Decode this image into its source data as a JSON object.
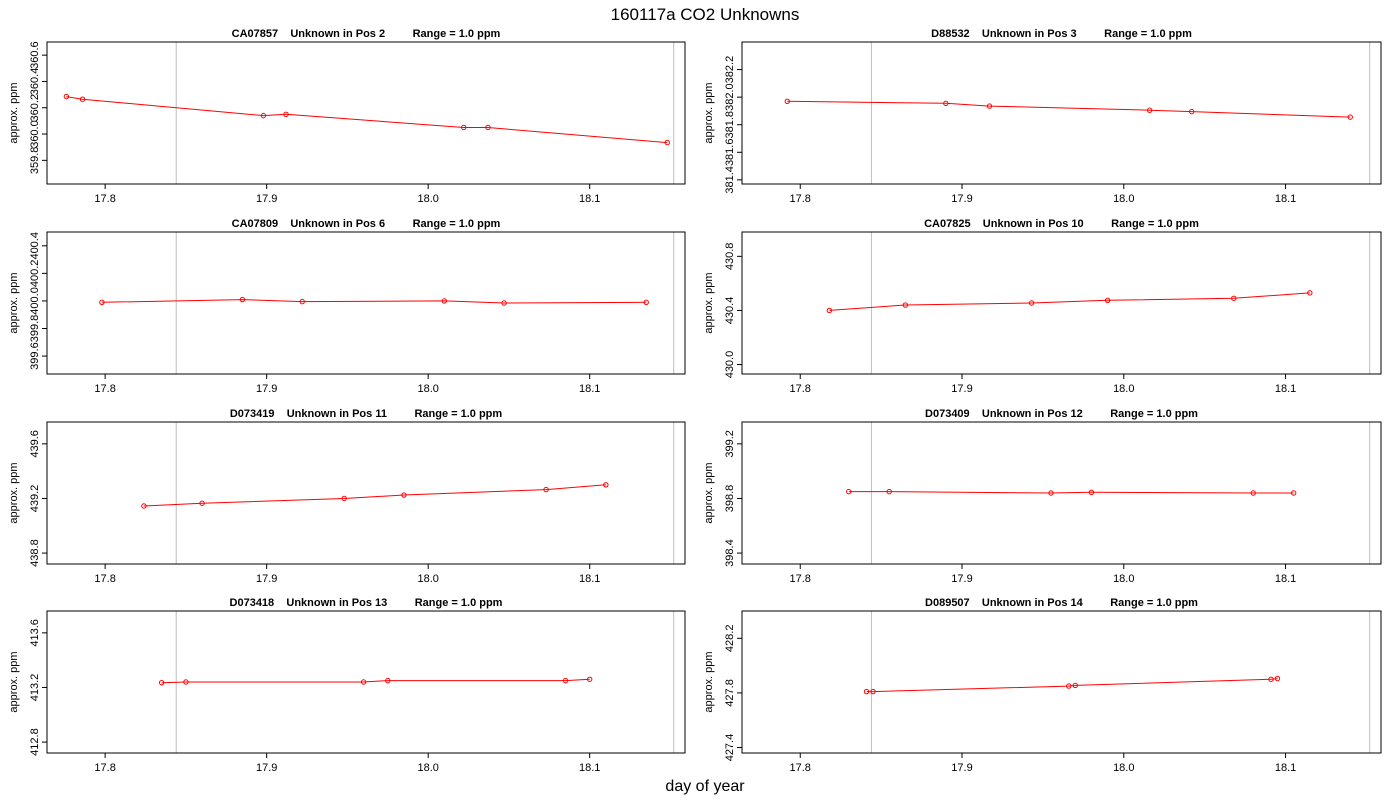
{
  "title": "160117a  CO2 Unknowns",
  "xlabel": "day of year",
  "ylabel": "approx. ppm",
  "x_ticks": [
    "17.8",
    "17.9",
    "18.0",
    "18.1"
  ],
  "colors": {
    "series": "#ff0000",
    "reference_lines": "#bebebe",
    "frame": "#000000"
  },
  "chart_data": [
    {
      "type": "line",
      "title": "CA07857    Unknown in Pos 2         Range = 1.0 ppm",
      "ylabel": "approx. ppm",
      "xlim": [
        17.764,
        18.159
      ],
      "ylim": [
        359.62,
        360.7
      ],
      "y_ticks": [
        "359.8",
        "360.0",
        "360.2",
        "360.4",
        "360.6"
      ],
      "reference_lines_x": [
        17.844,
        18.152
      ],
      "x": [
        17.776,
        17.786,
        17.898,
        17.912,
        18.022,
        18.037,
        18.148
      ],
      "y": [
        360.285,
        360.265,
        360.14,
        360.15,
        360.05,
        360.05,
        359.935
      ]
    },
    {
      "type": "line",
      "title": "D88532    Unknown in Pos 3         Range = 1.0 ppm",
      "ylabel": "approx. ppm",
      "xlim": [
        17.764,
        18.159
      ],
      "ylim": [
        381.37,
        382.4
      ],
      "y_ticks": [
        "381.4",
        "381.6",
        "381.8",
        "382.0",
        "382.2"
      ],
      "reference_lines_x": [
        17.844,
        18.152
      ],
      "x": [
        17.792,
        17.89,
        17.917,
        18.016,
        18.042,
        18.14
      ],
      "y": [
        381.97,
        381.955,
        381.935,
        381.905,
        381.895,
        381.855
      ]
    },
    {
      "type": "line",
      "title": "CA07809    Unknown in Pos 6         Range = 1.0 ppm",
      "ylabel": "approx. ppm",
      "xlim": [
        17.764,
        18.159
      ],
      "ylim": [
        399.47,
        400.5
      ],
      "y_ticks": [
        "399.6",
        "399.8",
        "400.0",
        "400.2",
        "400.4"
      ],
      "reference_lines_x": [
        17.844,
        18.152
      ],
      "x": [
        17.798,
        17.885,
        17.922,
        18.01,
        18.047,
        18.135
      ],
      "y": [
        399.99,
        400.01,
        399.995,
        400.0,
        399.985,
        399.99
      ]
    },
    {
      "type": "line",
      "title": "CA07825    Unknown in Pos 10         Range = 1.0 ppm",
      "ylabel": "approx. ppm",
      "xlim": [
        17.764,
        18.159
      ],
      "ylim": [
        429.93,
        430.98
      ],
      "y_ticks": [
        "430.0",
        "430.4",
        "430.8"
      ],
      "reference_lines_x": [
        17.844,
        18.152
      ],
      "x": [
        17.818,
        17.865,
        17.943,
        17.99,
        18.068,
        18.115
      ],
      "y": [
        430.4,
        430.44,
        430.455,
        430.475,
        430.49,
        430.53
      ]
    },
    {
      "type": "line",
      "title": "D073419    Unknown in Pos 11         Range = 1.0 ppm",
      "ylabel": "approx. ppm",
      "xlim": [
        17.764,
        18.159
      ],
      "ylim": [
        438.72,
        439.76
      ],
      "y_ticks": [
        "438.8",
        "439.2",
        "439.6"
      ],
      "reference_lines_x": [
        17.844,
        18.152
      ],
      "x": [
        17.824,
        17.86,
        17.948,
        17.985,
        18.073,
        18.11
      ],
      "y": [
        439.145,
        439.165,
        439.2,
        439.225,
        439.265,
        439.3
      ]
    },
    {
      "type": "line",
      "title": "D073409    Unknown in Pos 12         Range = 1.0 ppm",
      "ylabel": "approx. ppm",
      "xlim": [
        17.764,
        18.159
      ],
      "ylim": [
        398.32,
        399.36
      ],
      "y_ticks": [
        "398.4",
        "398.8",
        "399.2"
      ],
      "reference_lines_x": [
        17.844,
        18.152
      ],
      "x": [
        17.83,
        17.855,
        17.955,
        17.98,
        18.08,
        18.105
      ],
      "y": [
        398.85,
        398.85,
        398.84,
        398.845,
        398.84,
        398.84
      ]
    },
    {
      "type": "line",
      "title": "D073418    Unknown in Pos 13         Range = 1.0 ppm",
      "ylabel": "approx. ppm",
      "xlim": [
        17.764,
        18.159
      ],
      "ylim": [
        412.72,
        413.76
      ],
      "y_ticks": [
        "412.8",
        "413.2",
        "413.6"
      ],
      "reference_lines_x": [
        17.844,
        18.152
      ],
      "x": [
        17.835,
        17.85,
        17.96,
        17.975,
        18.085,
        18.1
      ],
      "y": [
        413.235,
        413.24,
        413.24,
        413.25,
        413.25,
        413.26
      ]
    },
    {
      "type": "line",
      "title": "D089507    Unknown in Pos 14         Range = 1.0 ppm",
      "ylabel": "approx. ppm",
      "xlim": [
        17.764,
        18.159
      ],
      "ylim": [
        427.36,
        428.4
      ],
      "y_ticks": [
        "427.4",
        "427.8",
        "428.2"
      ],
      "reference_lines_x": [
        17.844,
        18.152
      ],
      "x": [
        17.841,
        17.845,
        17.966,
        17.97,
        18.091,
        18.095
      ],
      "y": [
        427.81,
        427.81,
        427.85,
        427.855,
        427.9,
        427.905
      ]
    }
  ]
}
